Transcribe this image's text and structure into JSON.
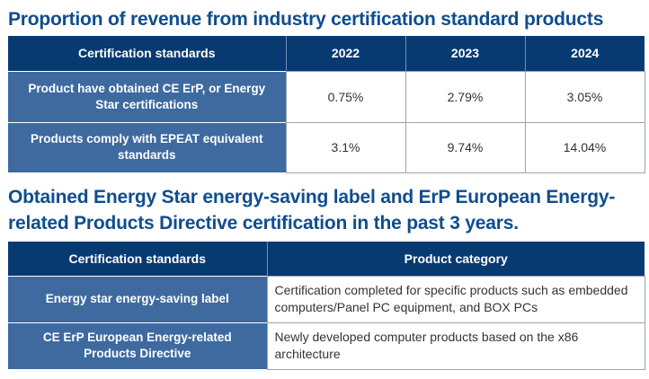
{
  "section1": {
    "title": "Proportion of revenue from industry certification standard products",
    "table": {
      "headers": [
        "Certification standards",
        "2022",
        "2023",
        "2024"
      ],
      "rows": [
        {
          "label": "Product have obtained CE ErP, or Energy Star certifications",
          "values": [
            "0.75%",
            "2.79%",
            "3.05%"
          ]
        },
        {
          "label": "Products comply with EPEAT equivalent standards",
          "values": [
            "3.1%",
            "9.74%",
            "14.04%"
          ]
        }
      ]
    }
  },
  "section2": {
    "title": "Obtained Energy Star energy-saving label and ErP European Energy-related Products Directive certification in the past 3 years.",
    "table": {
      "headers": [
        "Certification standards",
        "Product category"
      ],
      "rows": [
        {
          "label": "Energy star energy-saving label",
          "value": "Certification completed for specific products such as embedded computers/Panel PC equipment, and BOX PCs"
        },
        {
          "label": "CE ErP European Energy-related Products Directive",
          "value": "Newly developed computer products based on the x86 architecture"
        }
      ]
    }
  }
}
